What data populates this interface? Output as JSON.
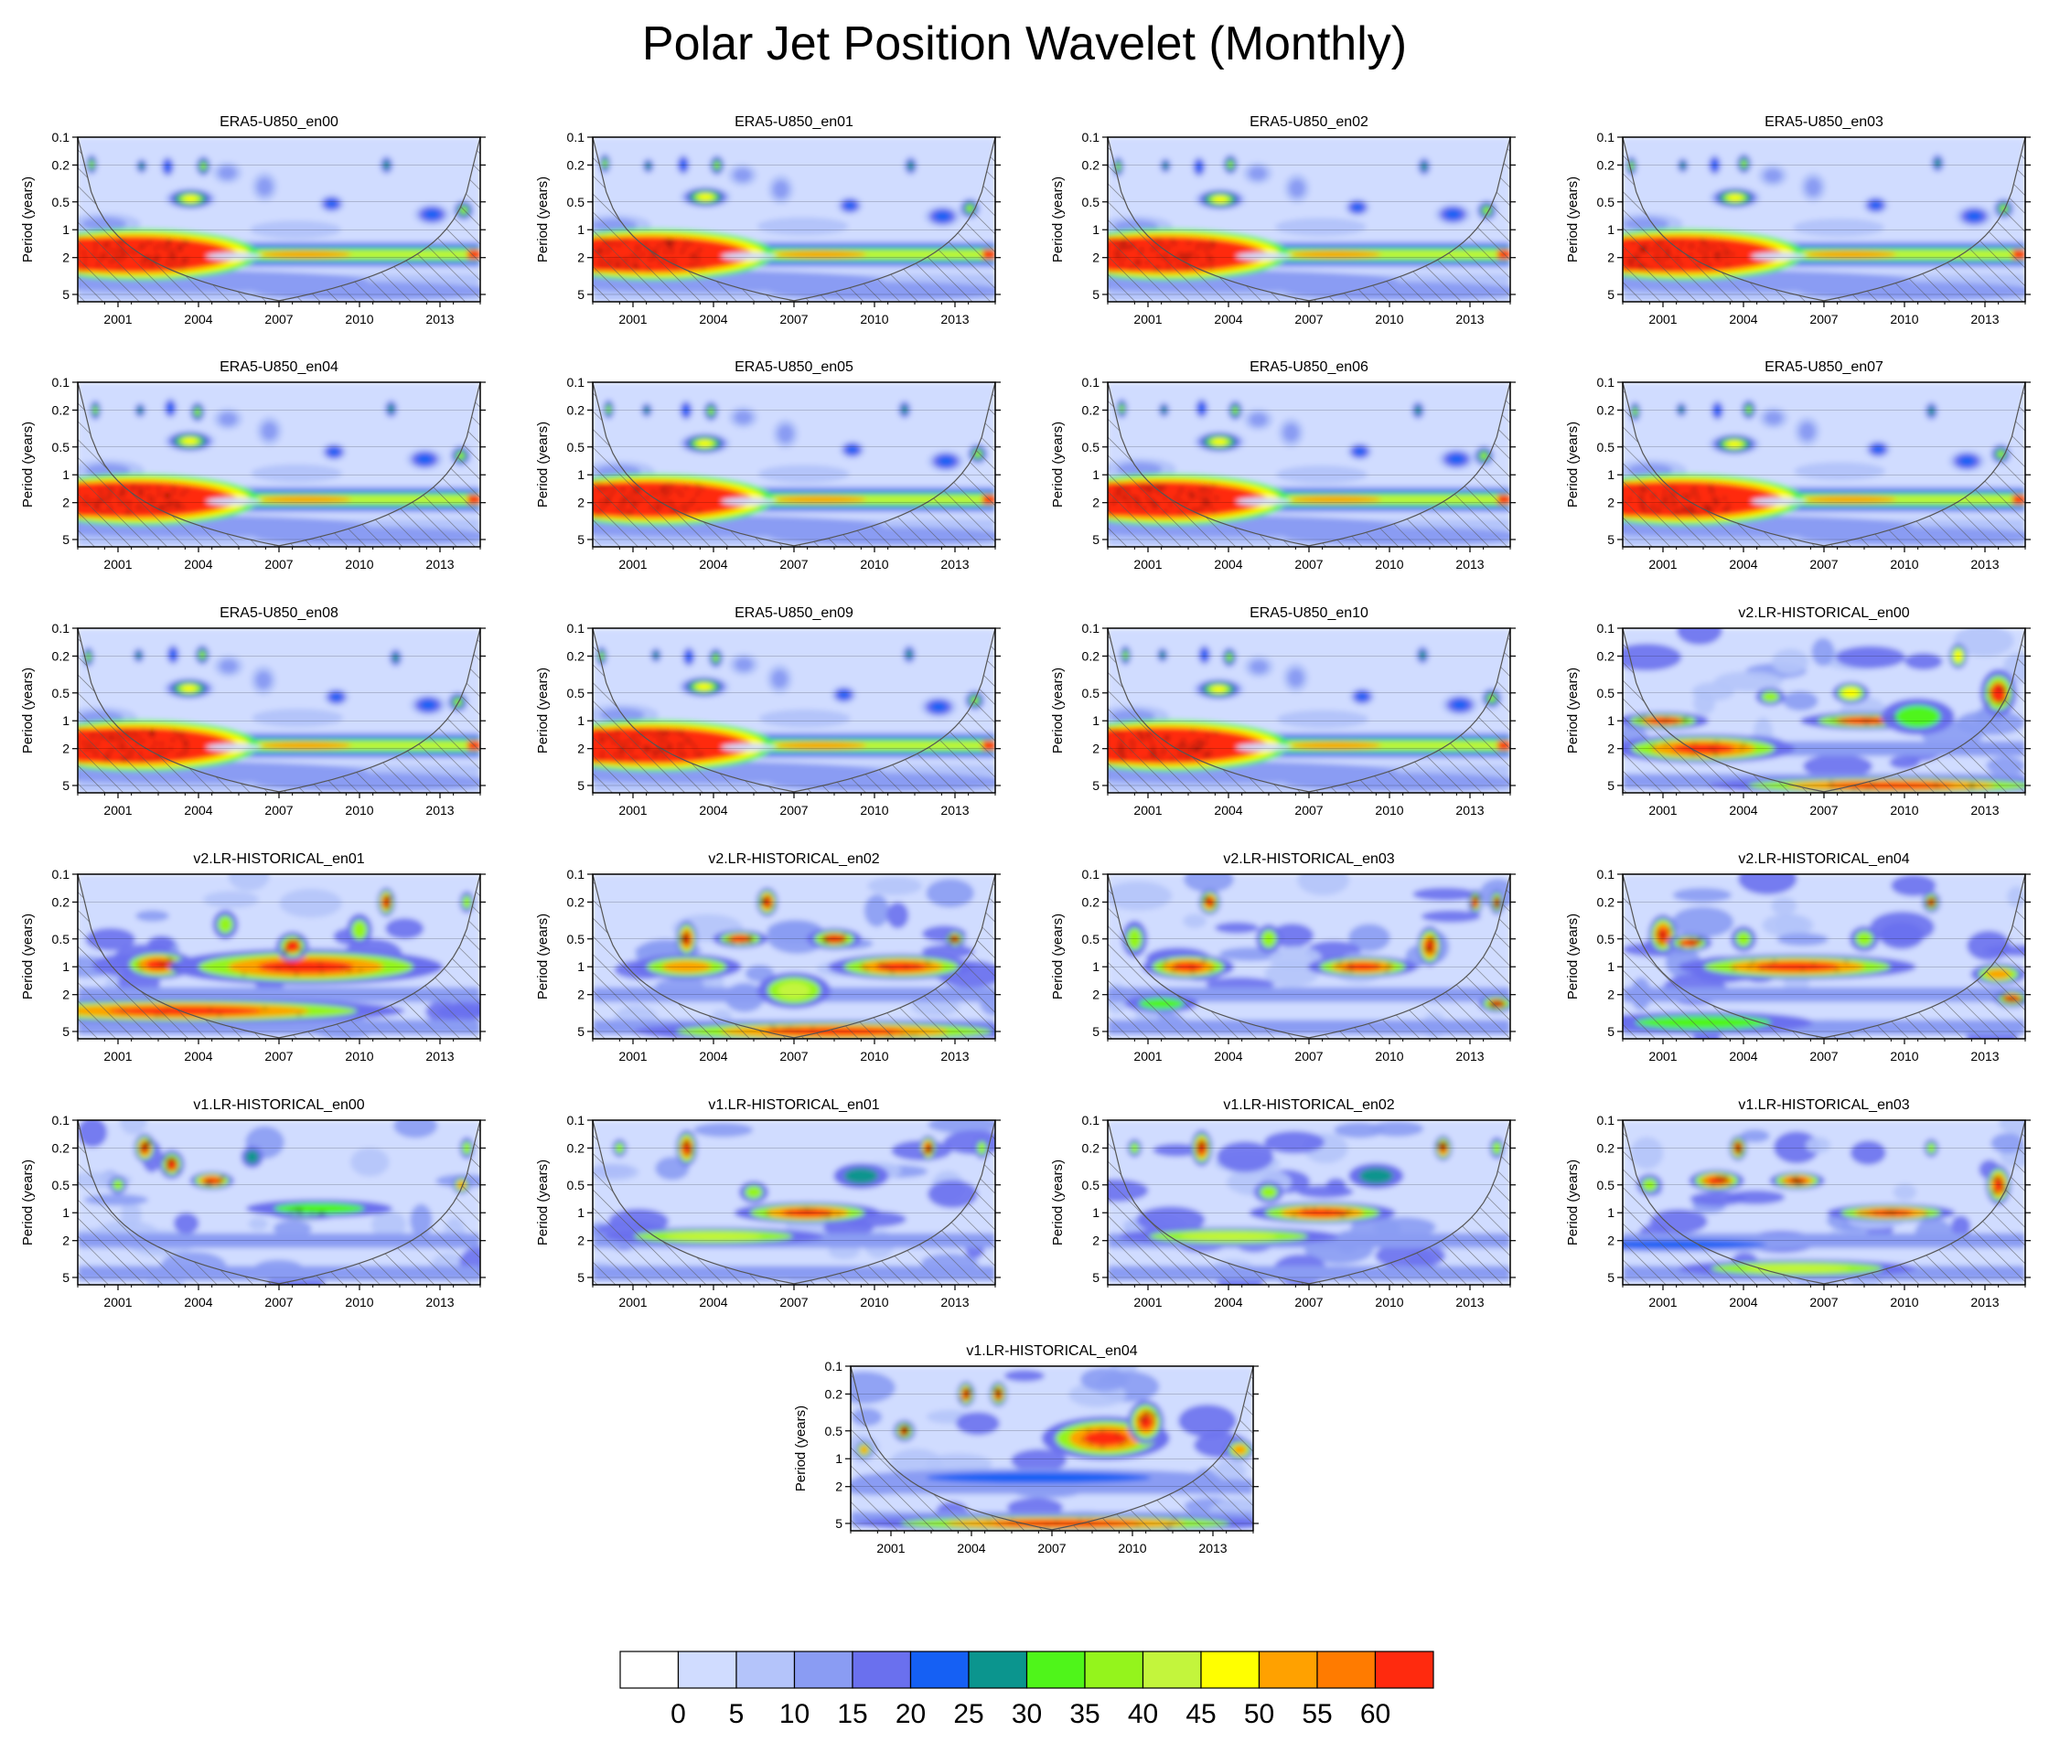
{
  "title": "Polar Jet Position Wavelet (Monthly)",
  "chart_data": {
    "type": "heatmap",
    "ylabel": "Period (years)",
    "y_scale": "log",
    "y_ticks": [
      "0.1",
      "0.2",
      "0.5",
      "1",
      "2",
      "5"
    ],
    "x_ticks": [
      "2001",
      "2004",
      "2007",
      "2010",
      "2013"
    ],
    "xlim": [
      2000,
      2015
    ],
    "ylim": [
      0.1,
      6
    ],
    "colorbar": {
      "colors": [
        "#ffffff",
        "#d0dcff",
        "#b4c4fa",
        "#8a9cf3",
        "#6a70ee",
        "#1560f4",
        "#0b958e",
        "#4ff51a",
        "#94f41c",
        "#c3f53c",
        "#ffff00",
        "#ffa100",
        "#ff7b00",
        "#ff2a0e"
      ],
      "labels": [
        "0",
        "5",
        "10",
        "15",
        "20",
        "25",
        "30",
        "35",
        "40",
        "45",
        "50",
        "55",
        "60"
      ]
    },
    "panels": [
      {
        "title": "ERA5-U850_en00"
      },
      {
        "title": "ERA5-U850_en01"
      },
      {
        "title": "ERA5-U850_en02"
      },
      {
        "title": "ERA5-U850_en03"
      },
      {
        "title": "ERA5-U850_en04"
      },
      {
        "title": "ERA5-U850_en05"
      },
      {
        "title": "ERA5-U850_en06"
      },
      {
        "title": "ERA5-U850_en07"
      },
      {
        "title": "ERA5-U850_en08"
      },
      {
        "title": "ERA5-U850_en09"
      },
      {
        "title": "ERA5-U850_en10"
      },
      {
        "title": "v2.LR-HISTORICAL_en00"
      },
      {
        "title": "v2.LR-HISTORICAL_en01"
      },
      {
        "title": "v2.LR-HISTORICAL_en02"
      },
      {
        "title": "v2.LR-HISTORICAL_en03"
      },
      {
        "title": "v2.LR-HISTORICAL_en04"
      },
      {
        "title": "v1.LR-HISTORICAL_en00"
      },
      {
        "title": "v1.LR-HISTORICAL_en01"
      },
      {
        "title": "v1.LR-HISTORICAL_en02"
      },
      {
        "title": "v1.LR-HISTORICAL_en03"
      },
      {
        "title": "v1.LR-HISTORICAL_en04"
      }
    ]
  }
}
